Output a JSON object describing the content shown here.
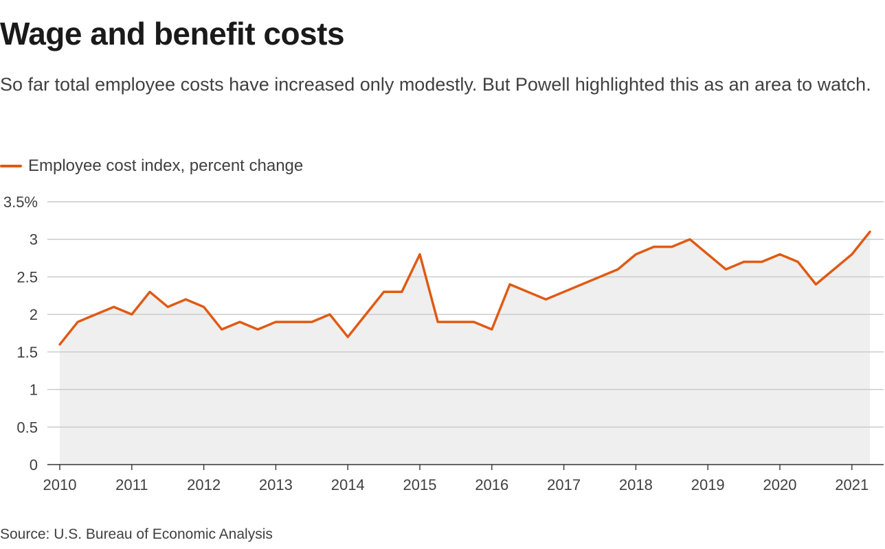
{
  "title": "Wage and benefit costs",
  "subtitle": "So far total employee costs have increased only modestly. But Powell highlighted this as an area to watch.",
  "source": "Source: U.S. Bureau of Economic Analysis",
  "colors": {
    "line": "#e05a12",
    "area": "#efefef",
    "grid": "#c8c8c8",
    "axis": "#333333",
    "text": "#404040"
  },
  "chart_data": {
    "type": "area",
    "legend": [
      "Employee cost index, percent change"
    ],
    "legend_position": "top-left",
    "grid": true,
    "ylim": [
      0,
      3.5
    ],
    "y_ticks": [
      0,
      0.5,
      1,
      1.5,
      2,
      2.5,
      3,
      3.5
    ],
    "y_tick_labels": [
      "0",
      "0.5",
      "1",
      "1.5",
      "2",
      "2.5",
      "3",
      "3.5%"
    ],
    "xlim": [
      2010,
      2021.5
    ],
    "x_ticks": [
      2010,
      2011,
      2012,
      2013,
      2014,
      2015,
      2016,
      2017,
      2018,
      2019,
      2020,
      2021
    ],
    "x_tick_labels": [
      "2010",
      "2011",
      "2012",
      "2013",
      "2014",
      "2015",
      "2016",
      "2017",
      "2018",
      "2019",
      "2020",
      "2021"
    ],
    "series": [
      {
        "name": "Employee cost index, percent change",
        "x": [
          "2010-Q1",
          "2010-Q2",
          "2010-Q3",
          "2010-Q4",
          "2011-Q1",
          "2011-Q2",
          "2011-Q3",
          "2011-Q4",
          "2012-Q1",
          "2012-Q2",
          "2012-Q3",
          "2012-Q4",
          "2013-Q1",
          "2013-Q2",
          "2013-Q3",
          "2013-Q4",
          "2014-Q1",
          "2014-Q2",
          "2014-Q3",
          "2014-Q4",
          "2015-Q1",
          "2015-Q2",
          "2015-Q3",
          "2015-Q4",
          "2016-Q1",
          "2016-Q2",
          "2016-Q3",
          "2016-Q4",
          "2017-Q1",
          "2017-Q2",
          "2017-Q3",
          "2017-Q4",
          "2018-Q1",
          "2018-Q2",
          "2018-Q3",
          "2018-Q4",
          "2019-Q1",
          "2019-Q2",
          "2019-Q3",
          "2019-Q4",
          "2020-Q1",
          "2020-Q2",
          "2020-Q3",
          "2020-Q4",
          "2021-Q1",
          "2021-Q2"
        ],
        "values": [
          1.6,
          1.9,
          2.0,
          2.1,
          2.0,
          2.3,
          2.1,
          2.2,
          2.1,
          1.8,
          1.9,
          1.8,
          1.9,
          1.9,
          1.9,
          2.0,
          1.7,
          2.0,
          2.3,
          2.3,
          2.8,
          1.9,
          1.9,
          1.9,
          1.8,
          2.4,
          2.3,
          2.2,
          2.3,
          2.4,
          2.5,
          2.6,
          2.8,
          2.9,
          2.9,
          3.0,
          2.8,
          2.6,
          2.7,
          2.7,
          2.8,
          2.7,
          2.4,
          2.6,
          2.8,
          3.1
        ]
      }
    ]
  }
}
